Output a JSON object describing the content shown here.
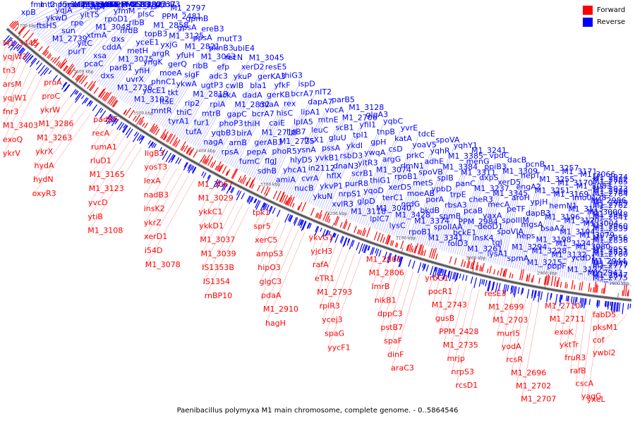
{
  "caption": "Paenibacillus polymyxa M1 main chromosome, complete genome. - 0..5864546",
  "legend": [
    {
      "label": "Forward",
      "color": "#ff0000"
    },
    {
      "label": "Reverse",
      "color": "#0000ff"
    }
  ],
  "colors": {
    "forward": "#ff0000",
    "reverse": "#0000ff",
    "axis": "#555555"
  },
  "ticks": [
    "3700 kbp",
    "3600 kbp",
    "3500 kbp",
    "3400 kbp",
    "3300 kbp",
    "3200 kbp",
    "3100 kbp",
    "3000 kbp",
    "2900 kbp",
    "2800 kbp"
  ],
  "reverse_labels": [
    "xpB",
    "fmt",
    "int2",
    "tnp5",
    "fur3",
    "nusB",
    "lipB",
    "ribH",
    "trpA",
    "ftsH5",
    "ykwD",
    "yqjA",
    "mutT3",
    "M1_3111",
    "M1_3038",
    "yqbB1",
    "dfrA",
    "PPM_2513",
    "M1_2739",
    "sun",
    "rpe",
    "yitT5",
    "vtjA",
    "crtE",
    "dacF",
    "ypfA",
    "M1_3180",
    "purT",
    "yitC",
    "xtmA",
    "M1_3048",
    "rpoD1",
    "yfmM",
    "mobB3",
    "M1_2823",
    "M1_2737",
    "pcaC",
    "xsa",
    "cddA",
    "dxs",
    "nrdB",
    "rlbB",
    "plsC",
    "tyrA",
    "phoB3",
    "dxs",
    "parB1",
    "M1_3075",
    "metH",
    "yceE1",
    "topB3",
    "M1_2858",
    "PPM_2481",
    "M1_2797",
    "M1_2736",
    "uvrX",
    "yfiH",
    "yngK",
    "argR",
    "yxjG",
    "M1_3125",
    "gpsA",
    "gpmB",
    "M1_3102",
    "yocE1",
    "phnC1",
    "moeA",
    "gerQ",
    "yfuH",
    "M1_2821",
    "ppsA",
    "ereB3",
    "mntR",
    "ftsE",
    "tkt",
    "ykwA",
    "sigF",
    "ribB",
    "M1_3063",
    "pknB3",
    "mutT3",
    "tyrA1",
    "thiC",
    "rip2",
    "M1_2819",
    "ugtP3",
    "adc3",
    "efp",
    "recN",
    "ubiE4",
    "tufA",
    "fur1",
    "mtrB",
    "rpiA",
    "ackA",
    "cwlB",
    "ykuP",
    "xerD2",
    "M1_3045",
    "nagA",
    "yqbB3",
    "phoP3",
    "gapC",
    "M1_2832",
    "dadA",
    "bla1",
    "gerKA3",
    "resE5",
    "rpsA",
    "arnB",
    "birA",
    "thiH",
    "bcrA7",
    "miaA",
    "gerKB",
    "yfkF",
    "thiG3",
    "fumC",
    "pepA",
    "gerAB3",
    "M1_2718",
    "caiE",
    "hisC",
    "rex",
    "bcrA7",
    "ispD",
    "sdhB",
    "flgJ",
    "phoR5",
    "M1_2725",
    "lipB7",
    "lpIA5",
    "lipA1",
    "dapA7",
    "nIT2",
    "amiA",
    "yhcA1",
    "hlyD5",
    "ysnA",
    "ftsX1",
    "leuC",
    "mtnE",
    "vocA",
    "parB5",
    "nucB",
    "cvrA",
    "in2112",
    "yvkB1",
    "pssA",
    "gluU",
    "scB1",
    "M1_2706",
    "M1_3128",
    "ykuN",
    "ykvP1",
    "hflX",
    "dnaN3",
    "rsbD3",
    "ykdI",
    "tpI1",
    "yfiI1",
    "glgA3",
    "xvlR3",
    "nrpS1",
    "purR8",
    "scrB1",
    "yitR3",
    "ywqA",
    "gpH",
    "tnpB",
    "yqbC",
    "M1_3118",
    "glpD",
    "yqoD",
    "thiG1",
    "M1_3074",
    "argG",
    "csD",
    "katA",
    "yvrE",
    "lplC7",
    "M1_3040",
    "terC1",
    "xerD5",
    "rpoB1",
    "rlmN1",
    "prkC",
    "yoaV5",
    "tdcE",
    "lysC",
    "M1_3428",
    "nrdG",
    "moeAB",
    "metS",
    "spoVB",
    "adhE",
    "yqhR",
    "spoVA",
    "rpoB1",
    "M1_3374",
    "bkdB",
    "porA",
    "ypbD",
    "spIB",
    "M1_3384",
    "M1_3385",
    "yqhY1",
    "M1_3341",
    "spoIIAA",
    "spmB",
    "rbsA3",
    "trpE",
    "panC",
    "M1_3311",
    "menG",
    "M1_3241",
    "folD3",
    "bckE1",
    "PPM_2984",
    "pcaB",
    "cheR3",
    "M1_3237",
    "dxpS",
    "ppiB3",
    "vpdC",
    "M1_3261",
    "insK4",
    "deoD1",
    "yaxA",
    "mecA",
    "M1_3345",
    "xerD5",
    "M1_3309",
    "dacB",
    "lysA1",
    "tgl",
    "spoVIA",
    "spoIIIM",
    "peTF",
    "aroH",
    "engA2",
    "hepT",
    "pcnB",
    "spmA",
    "M1_3294",
    "heps",
    "mgsA",
    "dapB3",
    "ypjH",
    "M1_3251",
    "M1_3255",
    "M1_3257",
    "M1_3215",
    "M1_3228",
    "M1_3198",
    "bsaA3",
    "M1_3196",
    "hemN1",
    "M1_3169",
    "M1_3170",
    "M1_3171",
    "pbpF",
    "M1_3132",
    "M1_3124",
    "M1_3104",
    "M1_3120",
    "M1_3113",
    "lmo0128",
    "M1_3083",
    "M1_3066",
    "M1_3122",
    "ycdD1",
    "M1_3080",
    "M1_3079",
    "M1_3004",
    "M1_3000",
    "M1_2986",
    "M1_2973",
    "M1_2974",
    "M1_2943",
    "M1_2944",
    "M1_2955",
    "M1_2956",
    "M1_2960",
    "M1_2948",
    "M1_2959",
    "M1_2996",
    "M1_2882",
    "M1_2847",
    "M1_2849",
    "M1_2831",
    "M1_2836",
    "M1_2839",
    "M1_2841",
    "M1_2762",
    "M1_2764",
    "M1_2765",
    "M1_2775",
    "M1_2777",
    "M1_2780"
  ],
  "forward_labels": [
    "M1_3445",
    "yqjW3",
    "tn3",
    "arsM",
    "yqjW1",
    "fnr3",
    "M1_3403",
    "exoQ",
    "ykrV",
    "proA",
    "proC",
    "ykrW",
    "M1_3286",
    "M1_3263",
    "ykrX",
    "hydA",
    "hydN",
    "oxyR3",
    "padR5",
    "recA",
    "rumA1",
    "rluD1",
    "M1_3165",
    "M1_3123",
    "yvcD",
    "ytiB",
    "M1_3108",
    "ligB3",
    "yosT3",
    "lexA",
    "nadB3",
    "insK2",
    "ykrZ",
    "xerD1",
    "i54D",
    "M1_3078",
    "M1_3067",
    "M1_3029",
    "ykkC1",
    "ykkD1",
    "M1_3037",
    "M1_3039",
    "IS1353B",
    "IS1354",
    "rnBP10",
    "tpk1",
    "spr5",
    "xerC5",
    "ampS3",
    "hipO3",
    "glgC3",
    "pdaA",
    "M1_2910",
    "hagH",
    "ykvG1",
    "yjcH3",
    "rafA",
    "eTR1",
    "M1_2793",
    "rpiR3",
    "ycej3",
    "spaG",
    "yycF1",
    "M1_2801",
    "M1_2806",
    "lmrB",
    "nikB1",
    "dppC3",
    "pstB7",
    "spaF",
    "dinF",
    "araC3",
    "yrbG1",
    "pocR1",
    "M1_2743",
    "gusB",
    "PPM_2428",
    "M1_2735",
    "mrjp",
    "nrpS3",
    "rcsD1",
    "resE3",
    "M1_2699",
    "M1_2703",
    "murI5",
    "yodA",
    "rcsR",
    "M1_2696",
    "M1_2702",
    "M1_2707",
    "M1_2710",
    "M1_2711",
    "exoK",
    "yktTr",
    "fruR3",
    "rafB",
    "cscA",
    "yagG",
    "yxeL",
    "fabD5",
    "pksM1",
    "cof",
    "ywbl2"
  ]
}
